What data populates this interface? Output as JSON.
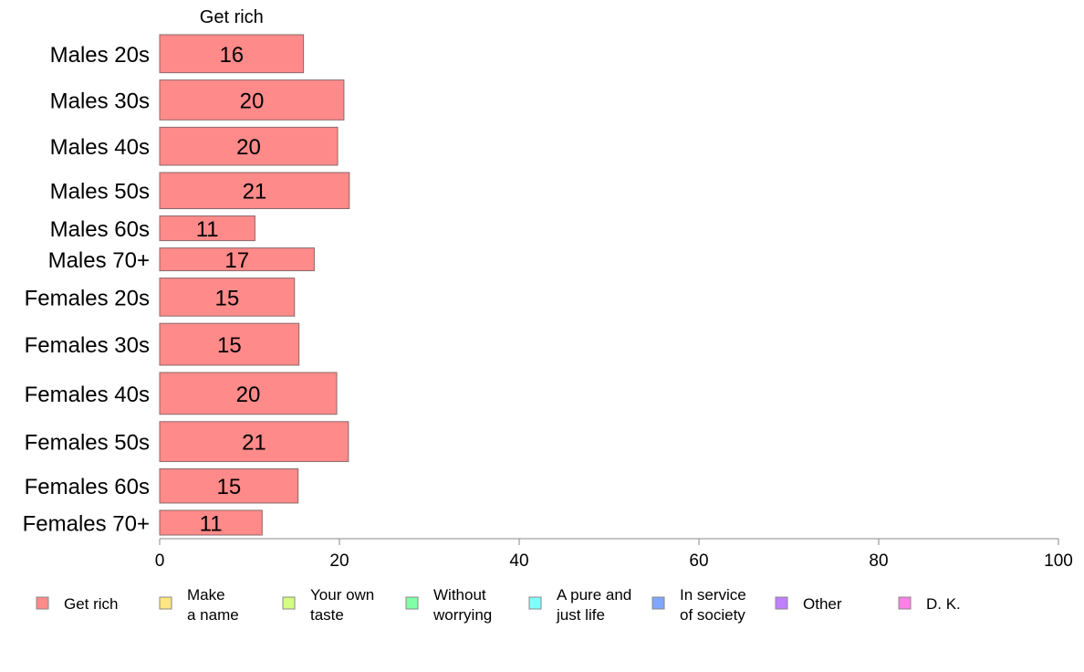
{
  "chart_data": {
    "type": "bar",
    "orientation": "horizontal",
    "stacked": true,
    "categories": [
      "Males 20s",
      "Males 30s",
      "Males 40s",
      "Males 50s",
      "Males 60s",
      "Males 70+",
      "Females 20s",
      "Females 30s",
      "Females 40s",
      "Females 50s",
      "Females 60s",
      "Females 70+"
    ],
    "series": [
      {
        "name": "Get rich",
        "values": [
          16,
          20.5,
          19.8,
          21.1,
          10.6,
          17.2,
          15,
          15.5,
          19.7,
          21,
          15.4,
          11.4
        ],
        "labels": [
          "16",
          "20",
          "20",
          "21",
          "11",
          "17",
          "15",
          "15",
          "20",
          "21",
          "15",
          "11"
        ],
        "color": "#ff8a8a"
      }
    ],
    "column_header": "Get rich",
    "xlim": [
      0,
      100
    ],
    "xticks": [
      "0",
      "20",
      "40",
      "60",
      "80",
      "100"
    ],
    "bar_thickness": [
      1.0,
      1.05,
      1.0,
      0.95,
      0.65,
      0.6,
      1.0,
      1.1,
      1.1,
      1.05,
      0.9,
      0.65
    ],
    "legend": [
      {
        "lines": [
          "Get rich"
        ],
        "color": "#ff8a8a"
      },
      {
        "lines": [
          "Make",
          "a name"
        ],
        "color": "#ffe680"
      },
      {
        "lines": [
          "Your own",
          "taste"
        ],
        "color": "#d4ff80"
      },
      {
        "lines": [
          "Without",
          "worrying"
        ],
        "color": "#80ffa6"
      },
      {
        "lines": [
          "A pure and",
          "just life"
        ],
        "color": "#80ffff"
      },
      {
        "lines": [
          "In service",
          "of society"
        ],
        "color": "#80a6ff"
      },
      {
        "lines": [
          "Other"
        ],
        "color": "#bf80ff"
      },
      {
        "lines": [
          "D. K."
        ],
        "color": "#ff80e6"
      }
    ],
    "legend_position": "bottom",
    "grid": false
  }
}
